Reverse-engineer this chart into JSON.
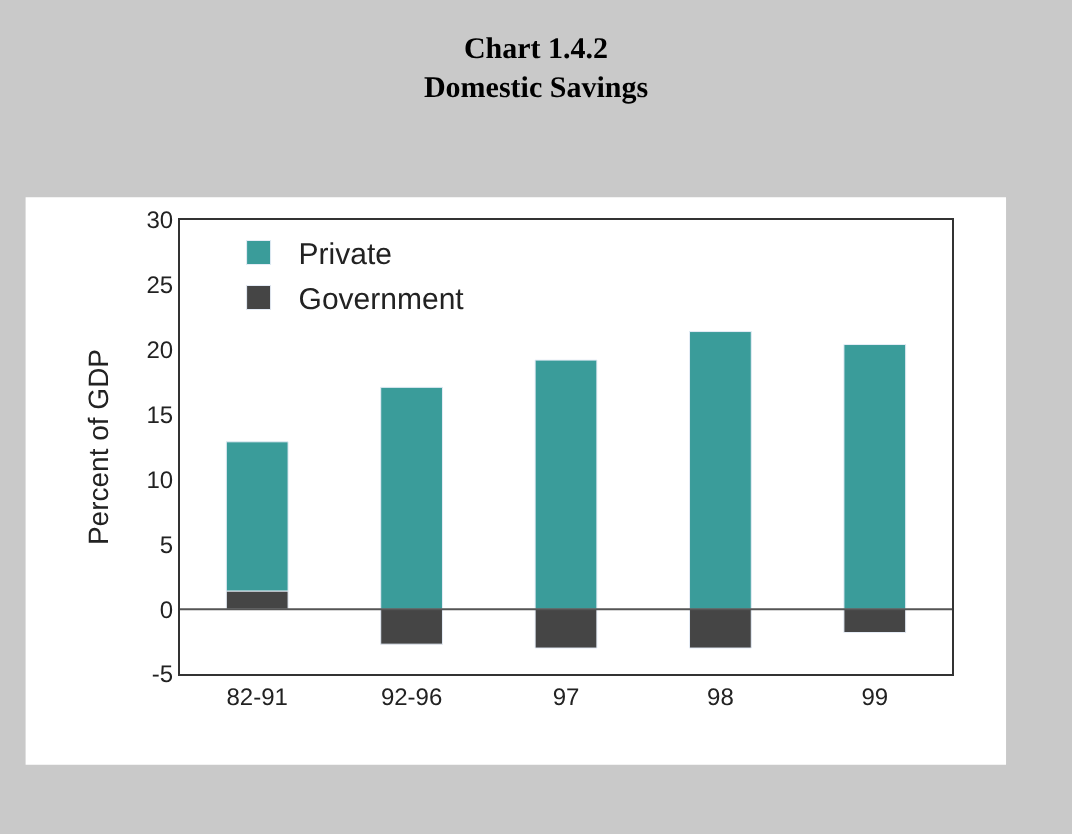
{
  "chart_data": {
    "type": "bar",
    "title": "Chart 1.4.2",
    "subtitle": "Domestic Savings",
    "ylabel": "Percent of GDP",
    "categories": [
      "82-91",
      "92-96",
      "97",
      "98",
      "99"
    ],
    "stacked": true,
    "series": [
      {
        "name": "Government",
        "color": "#454545",
        "values": [
          1.4,
          -2.7,
          -3.0,
          -3.0,
          -1.8
        ]
      },
      {
        "name": "Private",
        "color": "#3a9c9a",
        "values": [
          11.5,
          17.1,
          19.2,
          21.4,
          20.4
        ]
      }
    ],
    "ylim": [
      -5,
      30
    ],
    "yticks": [
      -5,
      0,
      5,
      10,
      15,
      20,
      25,
      30
    ],
    "ref_lines": [
      {
        "axis": "y",
        "value": 0,
        "color": "#555555"
      }
    ],
    "legend": "top left"
  }
}
